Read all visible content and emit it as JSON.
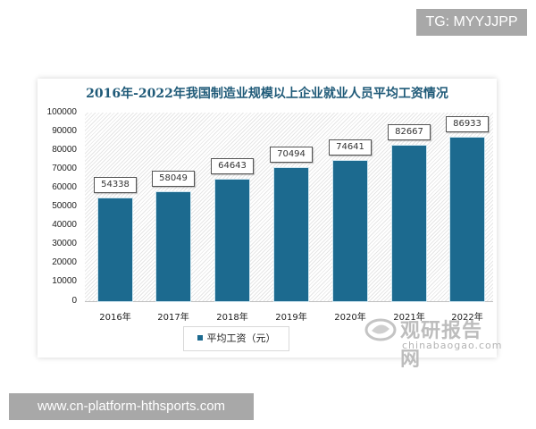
{
  "badges": {
    "top_right": "TG: MYYJJPP",
    "bottom_left": "www.cn-platform-hthsports.com"
  },
  "watermark": {
    "icon": "chinabaogao-logo-icon",
    "name_cn": "观研报告网",
    "domain": "chinabaogao.com"
  },
  "colors": {
    "bar": "#1c6a8f",
    "title": "#1f5a78"
  },
  "chart_data": {
    "type": "bar",
    "title": "2016年-2022年我国制造业规模以上企业就业人员平均工资情况",
    "categories": [
      "2016年",
      "2017年",
      "2018年",
      "2019年",
      "2020年",
      "2021年",
      "2022年"
    ],
    "series": [
      {
        "name": "平均工资（元）",
        "values": [
          54338,
          58049,
          64643,
          70494,
          74641,
          82667,
          86933
        ]
      }
    ],
    "values": [
      54338,
      58049,
      64643,
      70494,
      74641,
      82667,
      86933
    ],
    "value_labels": [
      "54338",
      "58049",
      "64643",
      "70494",
      "74641",
      "82667",
      "86933"
    ],
    "xlabel": "",
    "ylabel": "",
    "ylim": [
      0,
      100000
    ],
    "yticks": [
      "100000",
      "90000",
      "80000",
      "70000",
      "60000",
      "50000",
      "40000",
      "30000",
      "20000",
      "10000",
      "0"
    ],
    "legend": {
      "position": "bottom",
      "entries": [
        "平均工资（元）"
      ]
    },
    "grid": false
  }
}
